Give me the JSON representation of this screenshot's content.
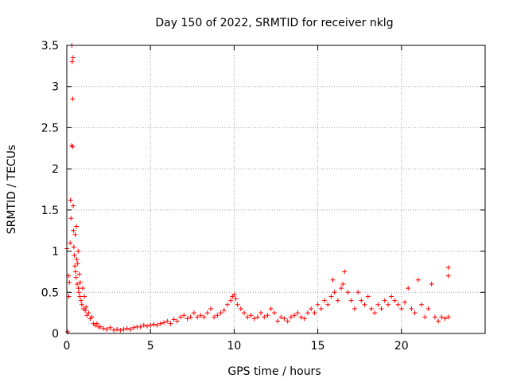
{
  "chart_data": {
    "type": "scatter",
    "title": "Day 150 of 2022, SRMTID for receiver nklg",
    "xlabel": "GPS time / hours",
    "ylabel": "SRMTID / TECUs",
    "xlim": [
      0,
      25
    ],
    "ylim": [
      0,
      3.5
    ],
    "x_ticks": [
      0,
      5,
      10,
      15,
      20
    ],
    "x_tick_labels": [
      "0",
      "5",
      "10",
      "15",
      "20"
    ],
    "y_ticks": [
      0,
      0.5,
      1,
      1.5,
      2,
      2.5,
      3,
      3.5
    ],
    "y_tick_labels": [
      "0",
      "0.5",
      "1",
      "1.5",
      "2",
      "2.5",
      "3",
      "3.5"
    ],
    "grid": true,
    "marker": "+",
    "series": [
      {
        "name": "SRMTID",
        "color": "#ff0000",
        "x": [
          0.0,
          0.05,
          0.1,
          0.12,
          0.15,
          0.2,
          0.22,
          0.25,
          0.28,
          0.3,
          0.32,
          0.35,
          0.36,
          0.37,
          0.38,
          0.4,
          0.42,
          0.45,
          0.48,
          0.5,
          0.52,
          0.55,
          0.58,
          0.6,
          0.62,
          0.65,
          0.68,
          0.7,
          0.72,
          0.75,
          0.78,
          0.8,
          0.85,
          0.9,
          0.95,
          1.0,
          1.05,
          1.1,
          1.15,
          1.2,
          1.3,
          1.4,
          1.5,
          1.6,
          1.7,
          1.8,
          1.9,
          2.0,
          2.2,
          2.4,
          2.6,
          2.8,
          3.0,
          3.2,
          3.4,
          3.6,
          3.8,
          4.0,
          4.2,
          4.4,
          4.6,
          4.8,
          5.0,
          5.2,
          5.4,
          5.6,
          5.8,
          6.0,
          6.2,
          6.4,
          6.6,
          6.8,
          7.0,
          7.2,
          7.4,
          7.6,
          7.8,
          8.0,
          8.2,
          8.4,
          8.6,
          8.8,
          9.0,
          9.2,
          9.4,
          9.6,
          9.8,
          9.9,
          10.0,
          10.1,
          10.2,
          10.4,
          10.6,
          10.8,
          11.0,
          11.2,
          11.4,
          11.6,
          11.8,
          12.0,
          12.2,
          12.4,
          12.6,
          12.8,
          13.0,
          13.2,
          13.4,
          13.6,
          13.8,
          14.0,
          14.2,
          14.4,
          14.6,
          14.8,
          15.0,
          15.2,
          15.4,
          15.6,
          15.8,
          15.9,
          16.0,
          16.2,
          16.4,
          16.5,
          16.6,
          16.8,
          17.0,
          17.2,
          17.4,
          17.6,
          17.8,
          18.0,
          18.2,
          18.4,
          18.6,
          18.8,
          19.0,
          19.2,
          19.4,
          19.6,
          19.8,
          20.0,
          20.2,
          20.4,
          20.6,
          20.8,
          21.0,
          21.2,
          21.4,
          21.6,
          21.8,
          22.0,
          22.2,
          22.4,
          22.6,
          22.8,
          22.8,
          22.8
        ],
        "y": [
          1.03,
          0.02,
          0.7,
          0.45,
          0.62,
          1.1,
          1.62,
          1.4,
          2.28,
          3.5,
          3.3,
          2.85,
          2.27,
          3.35,
          1.55,
          1.25,
          1.05,
          0.95,
          0.82,
          1.2,
          0.75,
          0.68,
          1.3,
          0.9,
          0.6,
          0.85,
          1.0,
          0.55,
          0.5,
          0.72,
          0.45,
          0.62,
          0.4,
          0.35,
          0.55,
          0.3,
          0.45,
          0.28,
          0.32,
          0.22,
          0.25,
          0.18,
          0.2,
          0.12,
          0.1,
          0.12,
          0.08,
          0.08,
          0.06,
          0.05,
          0.07,
          0.04,
          0.05,
          0.04,
          0.05,
          0.06,
          0.05,
          0.07,
          0.08,
          0.08,
          0.1,
          0.09,
          0.1,
          0.11,
          0.1,
          0.12,
          0.13,
          0.15,
          0.12,
          0.17,
          0.15,
          0.2,
          0.22,
          0.18,
          0.2,
          0.25,
          0.2,
          0.22,
          0.2,
          0.25,
          0.3,
          0.2,
          0.22,
          0.25,
          0.28,
          0.35,
          0.4,
          0.45,
          0.47,
          0.42,
          0.35,
          0.3,
          0.25,
          0.2,
          0.22,
          0.18,
          0.2,
          0.25,
          0.2,
          0.22,
          0.3,
          0.25,
          0.15,
          0.2,
          0.18,
          0.15,
          0.2,
          0.22,
          0.25,
          0.2,
          0.18,
          0.25,
          0.3,
          0.25,
          0.35,
          0.3,
          0.4,
          0.35,
          0.45,
          0.65,
          0.5,
          0.4,
          0.55,
          0.6,
          0.75,
          0.5,
          0.4,
          0.3,
          0.5,
          0.4,
          0.35,
          0.45,
          0.3,
          0.25,
          0.35,
          0.3,
          0.4,
          0.35,
          0.45,
          0.4,
          0.35,
          0.3,
          0.38,
          0.55,
          0.3,
          0.25,
          0.65,
          0.35,
          0.2,
          0.3,
          0.6,
          0.2,
          0.15,
          0.2,
          0.18,
          0.2,
          0.8,
          0.7
        ]
      }
    ]
  }
}
